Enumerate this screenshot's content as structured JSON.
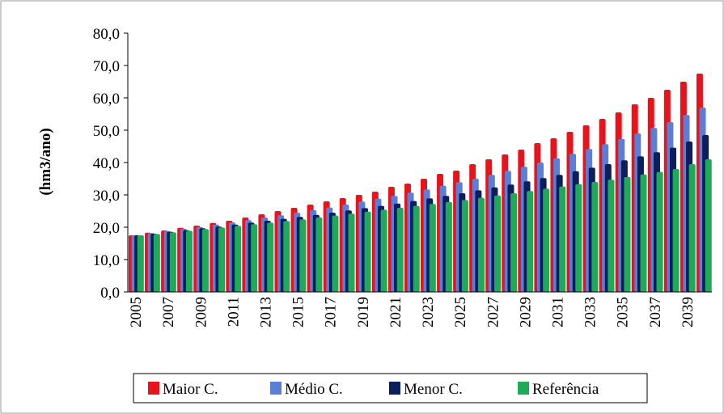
{
  "chart_data": {
    "type": "bar",
    "ylabel": "(hm3/ano)",
    "categories": [
      "2005",
      null,
      "2007",
      null,
      "2009",
      null,
      "2011",
      null,
      "2013",
      null,
      "2015",
      null,
      "2017",
      null,
      "2019",
      null,
      "2021",
      null,
      "2023",
      null,
      "2025",
      null,
      "2027",
      null,
      "2029",
      null,
      "2031",
      null,
      "2033",
      null,
      "2035",
      null,
      "2037",
      null,
      "2039",
      null
    ],
    "series": [
      {
        "name": "Maior C.",
        "color": "#e8141c",
        "values": [
          17.5,
          18.3,
          19.0,
          19.8,
          20.5,
          21.3,
          22.0,
          23.0,
          24.0,
          25.0,
          26.0,
          27.0,
          28.0,
          29.0,
          30.0,
          31.0,
          32.5,
          33.5,
          35.0,
          36.5,
          37.5,
          39.5,
          41.0,
          42.5,
          44.0,
          46.0,
          47.5,
          49.5,
          51.5,
          53.5,
          55.5,
          58.0,
          60.0,
          62.5,
          65.0,
          67.5
        ]
      },
      {
        "name": "Médio C.",
        "color": "#5b7fd6",
        "values": [
          17.5,
          18.2,
          18.8,
          19.5,
          20.1,
          20.8,
          21.5,
          22.2,
          23.0,
          23.7,
          24.5,
          25.3,
          26.1,
          27.0,
          27.9,
          28.8,
          29.7,
          30.7,
          31.7,
          32.8,
          33.9,
          35.0,
          36.2,
          37.4,
          38.7,
          40.0,
          41.3,
          42.7,
          44.2,
          45.7,
          47.3,
          49.0,
          50.7,
          52.5,
          54.7,
          57.0
        ]
      },
      {
        "name": "Menor C.",
        "color": "#0b1f5c",
        "values": [
          17.5,
          18.0,
          18.6,
          19.1,
          19.7,
          20.2,
          20.8,
          21.4,
          22.0,
          22.6,
          23.2,
          23.8,
          24.5,
          25.2,
          25.9,
          26.6,
          27.3,
          28.1,
          28.9,
          29.7,
          30.5,
          31.4,
          32.3,
          33.2,
          34.2,
          35.2,
          36.2,
          37.3,
          38.4,
          39.5,
          40.7,
          41.9,
          43.2,
          44.6,
          46.5,
          48.5
        ]
      },
      {
        "name": "Referência",
        "color": "#1faa5a",
        "values": [
          17.5,
          17.9,
          18.4,
          18.9,
          19.4,
          19.9,
          20.4,
          20.9,
          21.4,
          21.9,
          22.4,
          23.0,
          23.6,
          24.2,
          24.8,
          25.4,
          26.0,
          26.6,
          27.2,
          27.8,
          28.4,
          29.1,
          29.8,
          30.5,
          31.2,
          31.9,
          32.6,
          33.3,
          34.0,
          34.7,
          35.5,
          36.3,
          37.1,
          38.0,
          39.5,
          41.0
        ]
      }
    ],
    "ylim": [
      0,
      80
    ],
    "yticks": [
      {
        "value": 0,
        "label": "0,0"
      },
      {
        "value": 10,
        "label": "10,0"
      },
      {
        "value": 20,
        "label": "20,0"
      },
      {
        "value": 30,
        "label": "30,0"
      },
      {
        "value": 40,
        "label": "40,0"
      },
      {
        "value": 50,
        "label": "50,0"
      },
      {
        "value": 60,
        "label": "60,0"
      },
      {
        "value": 70,
        "label": "70,0"
      },
      {
        "value": 80,
        "label": "80,0"
      }
    ],
    "legend": "bottom"
  }
}
